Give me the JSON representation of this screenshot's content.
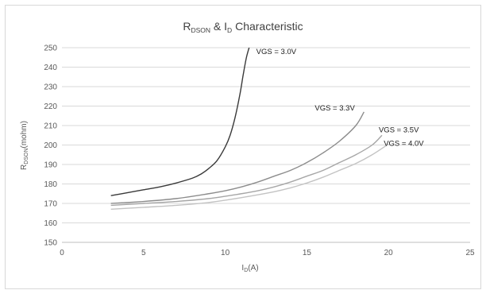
{
  "chart_data": {
    "type": "line",
    "title": {
      "main": "R",
      "sub1": "DSON",
      "mid": " & I",
      "sub2": "D",
      "tail": " Characteristic"
    },
    "xlabel": {
      "main": "I",
      "sub": "D",
      "tail": "(A)"
    },
    "ylabel": {
      "main": "R",
      "sub": "DSON",
      "tail": "(mohm)"
    },
    "xlim": [
      0,
      25
    ],
    "ylim": [
      150,
      250
    ],
    "xticks": [
      "0",
      "5",
      "10",
      "15",
      "20",
      "25"
    ],
    "yticks": [
      "150",
      "160",
      "170",
      "180",
      "190",
      "200",
      "210",
      "220",
      "230",
      "240",
      "250"
    ],
    "grid": {
      "horizontal": true,
      "vertical": false
    },
    "series": [
      {
        "name": "VGS = 3.0V",
        "color": "#3a3a3a",
        "x": [
          3,
          4,
          5,
          6,
          7,
          8,
          8.5,
          9,
          9.5,
          10,
          10.3,
          10.6,
          10.9,
          11.1,
          11.3,
          11.5
        ],
        "y": [
          174,
          175.5,
          177,
          178.5,
          180.5,
          183,
          185,
          188,
          192,
          199,
          205,
          214,
          226,
          236,
          245,
          251
        ]
      },
      {
        "name": "VGS = 3.3V",
        "color": "#8c8c8c",
        "x": [
          3,
          5,
          7,
          9,
          10,
          11,
          12,
          13,
          14,
          15,
          16,
          17,
          18,
          18.5
        ],
        "y": [
          170,
          171,
          172.5,
          175,
          176.5,
          178.5,
          181,
          184,
          187,
          191,
          196,
          202,
          210,
          217
        ]
      },
      {
        "name": "VGS = 3.5V",
        "color": "#a6a6a6",
        "x": [
          3,
          5,
          7,
          9,
          11,
          12,
          13,
          14,
          15,
          16,
          17,
          18,
          19,
          19.6
        ],
        "y": [
          169,
          170,
          171,
          172.5,
          175,
          176.5,
          178.5,
          181,
          184,
          187,
          191,
          195,
          200,
          205
        ]
      },
      {
        "name": "VGS = 4.0V",
        "color": "#c3c3c3",
        "x": [
          3,
          5,
          7,
          9,
          11,
          13,
          14,
          15,
          16,
          17,
          18,
          19,
          20
        ],
        "y": [
          167,
          168,
          169,
          170.5,
          173,
          176,
          178,
          180.5,
          183.5,
          187,
          190.5,
          195,
          200.5
        ]
      }
    ]
  }
}
